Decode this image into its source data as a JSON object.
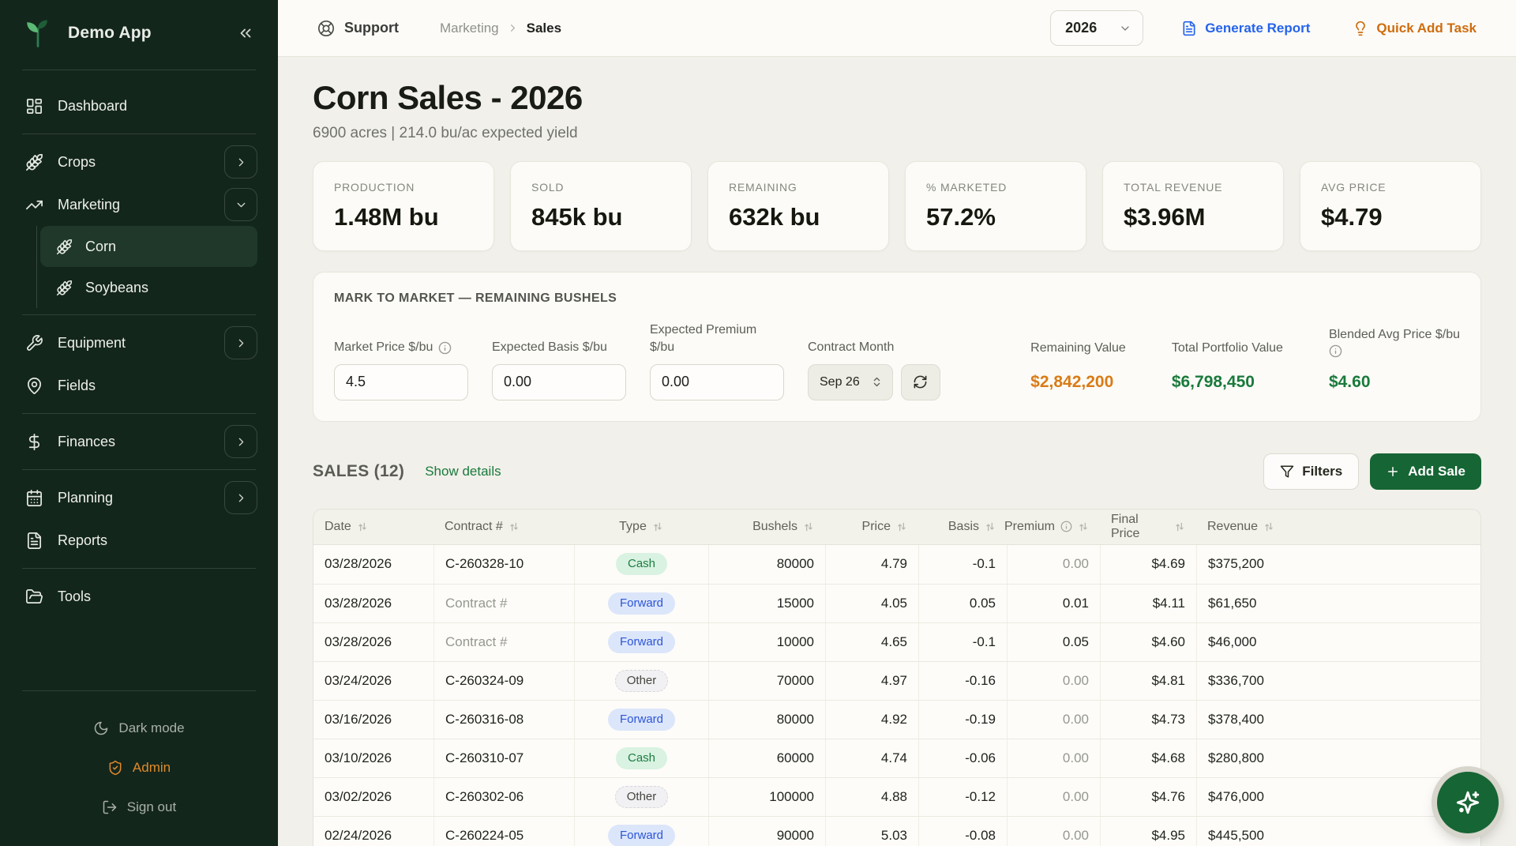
{
  "colors": {
    "sidebar_bg": "#13261c",
    "sidebar_active_bg": "#1f3829",
    "accent_green_dark": "#166534",
    "text_green": "#1a7a3c",
    "accent_orange": "#d97b16",
    "accent_orange_deep": "#cf6c0e",
    "accent_blue": "#2563eb",
    "badge_cash_bg": "#d9f2e1",
    "badge_cash_text": "#1d7c42",
    "badge_forward_bg": "#dce6fa",
    "badge_forward_text": "#2c55d8",
    "page_bg": "#f1f0ea",
    "card_bg": "#fcfbf7"
  },
  "sidebar": {
    "app_name": "Demo App",
    "nav": [
      {
        "label": "Dashboard",
        "icon": "dashboard-icon",
        "divider_after": true
      },
      {
        "label": "Crops",
        "icon": "wheat-icon",
        "expand": "right"
      },
      {
        "label": "Marketing",
        "icon": "trending-up-icon",
        "expand": "down"
      },
      {
        "label": "Corn",
        "icon": "wheat-icon",
        "sub": true,
        "active": true
      },
      {
        "label": "Soybeans",
        "icon": "wheat-icon",
        "sub": true,
        "divider_after": true
      },
      {
        "label": "Equipment",
        "icon": "wrench-icon",
        "expand": "right"
      },
      {
        "label": "Fields",
        "icon": "map-pin-icon",
        "divider_after": true
      },
      {
        "label": "Finances",
        "icon": "dollar-icon",
        "expand": "right",
        "divider_after": true
      },
      {
        "label": "Planning",
        "icon": "calendar-icon",
        "expand": "right"
      },
      {
        "label": "Reports",
        "icon": "file-text-icon",
        "divider_after": true
      },
      {
        "label": "Tools",
        "icon": "folder-icon"
      }
    ],
    "footer": [
      {
        "label": "Dark mode",
        "icon": "moon-icon",
        "tone": "muted"
      },
      {
        "label": "Admin",
        "icon": "shield-check-icon",
        "tone": "orange"
      },
      {
        "label": "Sign out",
        "icon": "log-out-icon",
        "tone": "muted"
      }
    ]
  },
  "topbar": {
    "support_label": "Support",
    "breadcrumb_parent": "Marketing",
    "breadcrumb_current": "Sales",
    "year": "2026",
    "generate_report_label": "Generate Report",
    "quick_add_label": "Quick Add Task"
  },
  "header": {
    "title": "Corn Sales - 2026",
    "subtitle": "6900 acres | 214.0 bu/ac expected yield"
  },
  "stats": [
    {
      "label": "PRODUCTION",
      "value": "1.48M bu"
    },
    {
      "label": "SOLD",
      "value": "845k bu"
    },
    {
      "label": "REMAINING",
      "value": "632k bu"
    },
    {
      "label": "% MARKETED",
      "value": "57.2%"
    },
    {
      "label": "TOTAL REVENUE",
      "value": "$3.96M"
    },
    {
      "label": "AVG PRICE",
      "value": "$4.79"
    }
  ],
  "mark_to_market": {
    "heading": "MARK TO MARKET — REMAINING BUSHELS",
    "market_price": {
      "label": "Market Price $/bu",
      "value": "4.5"
    },
    "expected_basis": {
      "label": "Expected Basis $/bu",
      "value": "0.00"
    },
    "expected_premium": {
      "label": "Expected Premium $/bu",
      "value": "0.00"
    },
    "contract_month": {
      "label": "Contract Month",
      "value": "Sep 26"
    },
    "remaining_value": {
      "label": "Remaining Value",
      "value": "$2,842,200"
    },
    "total_portfolio_value": {
      "label": "Total Portfolio Value",
      "value": "$6,798,450"
    },
    "blended_avg_price": {
      "label": "Blended Avg Price $/bu",
      "value": "$4.60"
    }
  },
  "sales": {
    "title": "SALES (12)",
    "show_details_label": "Show details",
    "filters_label": "Filters",
    "add_sale_label": "Add Sale",
    "contract_placeholder": "Contract #",
    "columns": [
      {
        "label": "Date",
        "align": "left",
        "sortable": true
      },
      {
        "label": "Contract #",
        "align": "left",
        "sortable": true
      },
      {
        "label": "Type",
        "align": "center",
        "sortable": true
      },
      {
        "label": "Bushels",
        "align": "right",
        "sortable": true
      },
      {
        "label": "Price",
        "align": "right",
        "sortable": true
      },
      {
        "label": "Basis",
        "align": "right",
        "sortable": true
      },
      {
        "label": "Premium",
        "align": "right",
        "sortable": true,
        "info": true
      },
      {
        "label": "Final Price",
        "align": "right",
        "sortable": true
      },
      {
        "label": "Revenue",
        "align": "left",
        "sortable": true
      }
    ],
    "rows": [
      {
        "date": "03/28/2026",
        "contract": "C-260328-10",
        "type": "Cash",
        "bushels": "80000",
        "price": "4.79",
        "basis": "-0.1",
        "premium": "0.00",
        "final_price": "$4.69",
        "revenue": "$375,200"
      },
      {
        "date": "03/28/2026",
        "contract": "Contract #",
        "type": "Forward",
        "bushels": "15000",
        "price": "4.05",
        "basis": "0.05",
        "premium": "0.01",
        "final_price": "$4.11",
        "revenue": "$61,650"
      },
      {
        "date": "03/28/2026",
        "contract": "Contract #",
        "type": "Forward",
        "bushels": "10000",
        "price": "4.65",
        "basis": "-0.1",
        "premium": "0.05",
        "final_price": "$4.60",
        "revenue": "$46,000"
      },
      {
        "date": "03/24/2026",
        "contract": "C-260324-09",
        "type": "Other",
        "bushels": "70000",
        "price": "4.97",
        "basis": "-0.16",
        "premium": "0.00",
        "final_price": "$4.81",
        "revenue": "$336,700"
      },
      {
        "date": "03/16/2026",
        "contract": "C-260316-08",
        "type": "Forward",
        "bushels": "80000",
        "price": "4.92",
        "basis": "-0.19",
        "premium": "0.00",
        "final_price": "$4.73",
        "revenue": "$378,400"
      },
      {
        "date": "03/10/2026",
        "contract": "C-260310-07",
        "type": "Cash",
        "bushels": "60000",
        "price": "4.74",
        "basis": "-0.06",
        "premium": "0.00",
        "final_price": "$4.68",
        "revenue": "$280,800"
      },
      {
        "date": "03/02/2026",
        "contract": "C-260302-06",
        "type": "Other",
        "bushels": "100000",
        "price": "4.88",
        "basis": "-0.12",
        "premium": "0.00",
        "final_price": "$4.76",
        "revenue": "$476,000"
      },
      {
        "date": "02/24/2026",
        "contract": "C-260224-05",
        "type": "Forward",
        "bushels": "90000",
        "price": "5.03",
        "basis": "-0.08",
        "premium": "0.00",
        "final_price": "$4.95",
        "revenue": "$445,500"
      }
    ]
  }
}
